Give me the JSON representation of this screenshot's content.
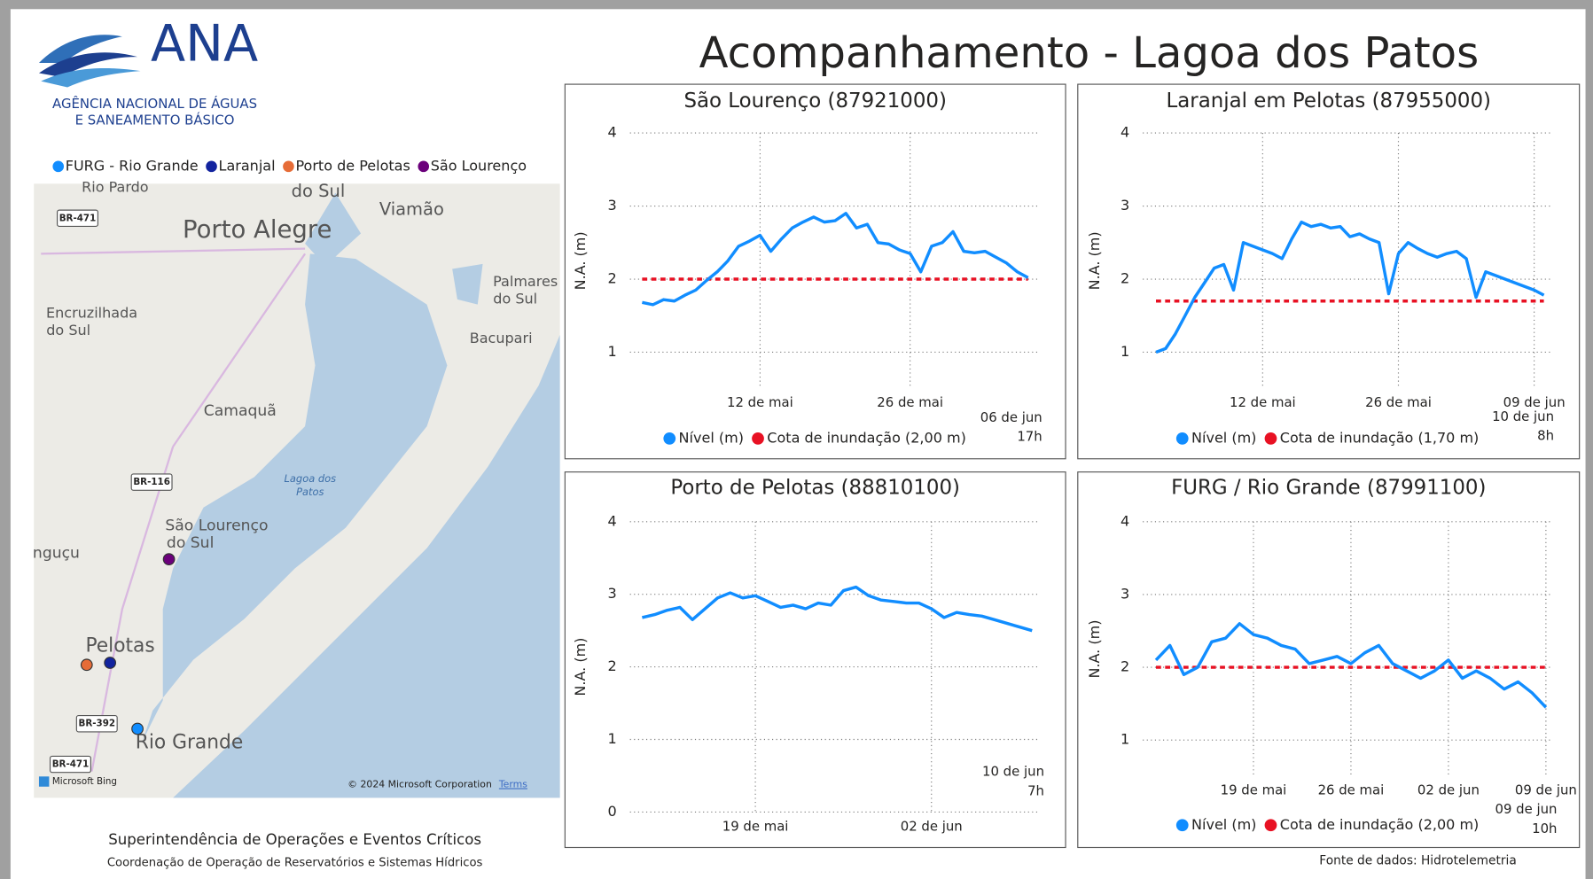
{
  "header": {
    "logo_text": "ANA",
    "agency_line1": "AGÊNCIA NACIONAL DE ÁGUAS",
    "agency_line2": "E SANEAMENTO BÁSICO",
    "title": "Acompanhamento - Lagoa dos Patos"
  },
  "map": {
    "legend": [
      {
        "name": "FURG - Rio Grande",
        "color": "#118dff"
      },
      {
        "name": "Laranjal",
        "color": "#12239e"
      },
      {
        "name": "Porto de Pelotas",
        "color": "#e66c37"
      },
      {
        "name": "São Lourenço",
        "color": "#6b007b"
      }
    ],
    "labels": [
      "Rio Pardo",
      "do Sul",
      "Viamão",
      "Porto Alegre",
      "Palmares",
      "do Sul",
      "Encruzilhada",
      "do Sul",
      "Bacupari",
      "Camaquã",
      "Lagoa dos",
      "Patos",
      "São Lourenço",
      "do Sul",
      "nguçu",
      "Pelotas",
      "Rio Grande"
    ],
    "roads": [
      "BR-471",
      "BR-116",
      "BR-392",
      "BR-471"
    ],
    "copyright": "© 2024 Microsoft Corporation",
    "terms": "Terms",
    "provider": "Microsoft Bing"
  },
  "chart_data": [
    {
      "type": "line",
      "title": "São Lourenço (87921000)",
      "y_label": "N.A. (m)",
      "x": [
        "01 de mai",
        "02 de mai",
        "03 de mai",
        "04 de mai",
        "05 de mai",
        "06 de mai",
        "07 de mai",
        "08 de mai",
        "09 de mai",
        "10 de mai",
        "11 de mai",
        "12 de mai",
        "13 de mai",
        "14 de mai",
        "15 de mai",
        "16 de mai",
        "17 de mai",
        "18 de mai",
        "19 de mai",
        "20 de mai",
        "21 de mai",
        "22 de mai",
        "23 de mai",
        "24 de mai",
        "25 de mai",
        "26 de mai",
        "27 de mai",
        "28 de mai",
        "29 de mai",
        "30 de mai",
        "31 de mai",
        "01 de jun",
        "02 de jun",
        "03 de jun",
        "04 de jun",
        "05 de jun",
        "06 de jun"
      ],
      "xticks": [
        "12 de mai",
        "26 de mai"
      ],
      "ylim": [
        0.5,
        4
      ],
      "yticks": [
        1,
        2,
        3,
        4
      ],
      "grid": true,
      "series": [
        {
          "name": "Nível (m)",
          "color": "#118dff",
          "values": [
            1.68,
            1.65,
            1.72,
            1.7,
            1.78,
            1.85,
            1.98,
            2.1,
            2.25,
            2.45,
            2.52,
            2.6,
            2.38,
            2.55,
            2.7,
            2.78,
            2.85,
            2.78,
            2.8,
            2.9,
            2.7,
            2.75,
            2.5,
            2.48,
            2.4,
            2.35,
            2.1,
            2.45,
            2.5,
            2.65,
            2.38,
            2.36,
            2.38,
            2.3,
            2.22,
            2.1,
            2.02
          ]
        }
      ],
      "reference": {
        "name": "Cota de inundação (2,00 m)",
        "color": "#e81123",
        "value": 2
      },
      "legend": true,
      "annotation": [
        "06 de jun",
        "17h"
      ]
    },
    {
      "type": "line",
      "title": "Laranjal em Pelotas (87955000)",
      "y_label": "N.A. (m)",
      "x": [
        "01 de mai",
        "02 de mai",
        "03 de mai",
        "04 de mai",
        "05 de mai",
        "06 de mai",
        "07 de mai",
        "08 de mai",
        "09 de mai",
        "10 de mai",
        "11 de mai",
        "12 de mai",
        "13 de mai",
        "14 de mai",
        "15 de mai",
        "16 de mai",
        "17 de mai",
        "18 de mai",
        "19 de mai",
        "20 de mai",
        "21 de mai",
        "22 de mai",
        "23 de mai",
        "24 de mai",
        "25 de mai",
        "26 de mai",
        "27 de mai",
        "28 de mai",
        "29 de mai",
        "30 de mai",
        "31 de mai",
        "01 de jun",
        "02 de jun",
        "03 de jun",
        "04 de jun",
        "05 de jun",
        "06 de jun",
        "07 de jun",
        "08 de jun",
        "09 de jun",
        "10 de jun"
      ],
      "xticks": [
        "12 de mai",
        "26 de mai",
        "09 de jun"
      ],
      "ylim": [
        0.5,
        4
      ],
      "yticks": [
        1,
        2,
        3,
        4
      ],
      "grid": true,
      "series": [
        {
          "name": "Nível (m)",
          "color": "#118dff",
          "values": [
            1.0,
            1.05,
            1.25,
            1.5,
            1.75,
            1.95,
            2.15,
            2.2,
            1.85,
            2.5,
            2.45,
            2.4,
            2.35,
            2.28,
            2.55,
            2.78,
            2.72,
            2.75,
            2.7,
            2.72,
            2.58,
            2.62,
            2.55,
            2.5,
            1.8,
            2.35,
            2.5,
            2.42,
            2.35,
            2.3,
            2.35,
            2.38,
            2.28,
            1.75,
            2.1,
            2.05,
            2.0,
            1.95,
            1.9,
            1.85,
            1.78
          ]
        }
      ],
      "reference": {
        "name": "Cota de inundação (1,70 m)",
        "color": "#e81123",
        "value": 1.7
      },
      "legend": true,
      "annotation": [
        "10 de jun",
        "8h"
      ]
    },
    {
      "type": "line",
      "title": "Porto de Pelotas (88810100)",
      "y_label": "N.A. (m)",
      "x": [
        "10 de mai",
        "11 de mai",
        "12 de mai",
        "13 de mai",
        "14 de mai",
        "15 de mai",
        "16 de mai",
        "17 de mai",
        "18 de mai",
        "19 de mai",
        "20 de mai",
        "21 de mai",
        "22 de mai",
        "23 de mai",
        "24 de mai",
        "25 de mai",
        "26 de mai",
        "27 de mai",
        "28 de mai",
        "29 de mai",
        "30 de mai",
        "31 de mai",
        "01 de jun",
        "02 de jun",
        "03 de jun",
        "04 de jun",
        "05 de jun",
        "06 de jun",
        "07 de jun",
        "08 de jun",
        "09 de jun",
        "10 de jun"
      ],
      "xticks": [
        "19 de mai",
        "02 de jun"
      ],
      "ylim": [
        0,
        4
      ],
      "yticks": [
        0,
        1,
        2,
        3,
        4
      ],
      "grid": true,
      "series": [
        {
          "name": "Nível (m)",
          "color": "#118dff",
          "values": [
            2.68,
            2.72,
            2.78,
            2.82,
            2.65,
            2.8,
            2.95,
            3.02,
            2.95,
            2.98,
            2.9,
            2.82,
            2.85,
            2.8,
            2.88,
            2.85,
            3.05,
            3.1,
            2.98,
            2.92,
            2.9,
            2.88,
            2.88,
            2.8,
            2.68,
            2.75,
            2.72,
            2.7,
            2.65,
            2.6,
            2.55,
            2.5
          ]
        }
      ],
      "legend": false,
      "annotation": [
        "10 de jun",
        "7h"
      ]
    },
    {
      "type": "line",
      "title": "FURG / Rio Grande (87991100)",
      "y_label": "N.A. (m)",
      "x": [
        "12 de mai",
        "13 de mai",
        "14 de mai",
        "15 de mai",
        "16 de mai",
        "17 de mai",
        "18 de mai",
        "19 de mai",
        "20 de mai",
        "21 de mai",
        "22 de mai",
        "23 de mai",
        "24 de mai",
        "25 de mai",
        "26 de mai",
        "27 de mai",
        "28 de mai",
        "29 de mai",
        "30 de mai",
        "31 de mai",
        "01 de jun",
        "02 de jun",
        "03 de jun",
        "04 de jun",
        "05 de jun",
        "06 de jun",
        "07 de jun",
        "08 de jun",
        "09 de jun"
      ],
      "xticks": [
        "19 de mai",
        "26 de mai",
        "02 de jun",
        "09 de jun"
      ],
      "ylim": [
        0.5,
        4
      ],
      "yticks": [
        1,
        2,
        3,
        4
      ],
      "grid": true,
      "series": [
        {
          "name": "Nível (m)",
          "color": "#118dff",
          "values": [
            2.1,
            2.3,
            1.9,
            2.0,
            2.35,
            2.4,
            2.6,
            2.45,
            2.4,
            2.3,
            2.25,
            2.05,
            2.1,
            2.15,
            2.05,
            2.2,
            2.3,
            2.05,
            1.95,
            1.85,
            1.95,
            2.1,
            1.85,
            1.95,
            1.85,
            1.7,
            1.8,
            1.65,
            1.45
          ]
        }
      ],
      "reference": {
        "name": "Cota de inundação (2,00 m)",
        "color": "#e81123",
        "value": 2
      },
      "legend": true,
      "annotation": [
        "09 de jun",
        "10h"
      ]
    }
  ],
  "footer": {
    "line1": "Superintendência de Operações e Eventos Críticos",
    "line2": "Coordenação de Operação de Reservatórios e Sistemas Hídricos",
    "source": "Fonte de dados: Hidrotelemetria"
  }
}
